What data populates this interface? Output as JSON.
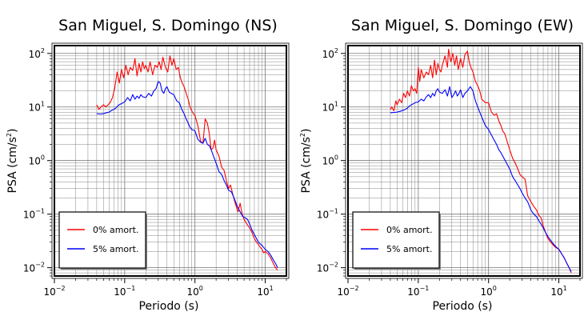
{
  "colors": {
    "undamped": "#ff0000",
    "damped": "#0000ff",
    "grid": "#777777",
    "frame": "#000000"
  },
  "chart_data": [
    {
      "type": "line",
      "title": "San Miguel, S. Domingo (NS)",
      "xlabel": "Periodo (s)",
      "ylabel_base": "PSA (cm/s",
      "ylabel_exp": "2",
      "ylabel_close": ")",
      "xscale": "log",
      "yscale": "log",
      "xlim": [
        0.01,
        20
      ],
      "ylim": [
        0.007,
        140
      ],
      "grid": true,
      "legend_position": "bottom-left",
      "xticks": [
        {
          "value": 0.01,
          "base": "10",
          "exp": "−2"
        },
        {
          "value": 0.1,
          "base": "10",
          "exp": "−1"
        },
        {
          "value": 1,
          "base": "10",
          "exp": "0"
        },
        {
          "value": 10,
          "base": "10",
          "exp": "1"
        }
      ],
      "yticks": [
        {
          "value": 0.01,
          "base": "10",
          "exp": "−2"
        },
        {
          "value": 0.1,
          "base": "10",
          "exp": "−1"
        },
        {
          "value": 1,
          "base": "10",
          "exp": "0"
        },
        {
          "value": 10,
          "base": "10",
          "exp": "1"
        },
        {
          "value": 100,
          "base": "10",
          "exp": "2"
        }
      ],
      "series": [
        {
          "name": "0% amort.",
          "color": "#ff0000",
          "x": [
            0.04,
            0.043,
            0.046,
            0.05,
            0.054,
            0.058,
            0.062,
            0.067,
            0.072,
            0.078,
            0.084,
            0.09,
            0.097,
            0.104,
            0.112,
            0.12,
            0.13,
            0.14,
            0.15,
            0.16,
            0.17,
            0.18,
            0.19,
            0.2,
            0.215,
            0.23,
            0.25,
            0.27,
            0.29,
            0.31,
            0.33,
            0.35,
            0.38,
            0.41,
            0.44,
            0.47,
            0.5,
            0.54,
            0.58,
            0.62,
            0.66,
            0.7,
            0.75,
            0.8,
            0.85,
            0.9,
            0.95,
            1.0,
            1.1,
            1.2,
            1.3,
            1.4,
            1.5,
            1.6,
            1.7,
            1.8,
            1.9,
            2.0,
            2.2,
            2.4,
            2.6,
            2.8,
            3.0,
            3.2,
            3.5,
            3.8,
            4.1,
            4.4,
            4.7,
            5.0,
            5.5,
            6.0,
            6.5,
            7.0,
            7.5,
            8.0,
            8.5,
            9.0,
            9.5,
            10,
            11,
            12,
            13,
            14,
            15
          ],
          "y": [
            11,
            9,
            10,
            11,
            10,
            11,
            12,
            15,
            22,
            45,
            28,
            50,
            35,
            60,
            40,
            55,
            48,
            80,
            38,
            65,
            45,
            70,
            52,
            60,
            45,
            70,
            40,
            60,
            55,
            70,
            50,
            85,
            55,
            45,
            90,
            60,
            80,
            50,
            55,
            35,
            28,
            24,
            18,
            14,
            10,
            8.5,
            7.5,
            7.0,
            4.5,
            2.3,
            2.1,
            6.0,
            5.0,
            3.2,
            1.6,
            1.7,
            2.4,
            1.6,
            1.2,
            0.75,
            0.65,
            0.42,
            0.3,
            0.35,
            0.22,
            0.15,
            0.11,
            0.16,
            0.1,
            0.08,
            0.065,
            0.055,
            0.045,
            0.035,
            0.03,
            0.027,
            0.024,
            0.022,
            0.019,
            0.02,
            0.018,
            0.015,
            0.012,
            0.01,
            0.009
          ]
        },
        {
          "name": "5% amort.",
          "color": "#0000ff",
          "x": [
            0.04,
            0.045,
            0.05,
            0.055,
            0.06,
            0.065,
            0.07,
            0.075,
            0.08,
            0.085,
            0.09,
            0.1,
            0.11,
            0.12,
            0.13,
            0.14,
            0.15,
            0.16,
            0.17,
            0.18,
            0.2,
            0.22,
            0.24,
            0.26,
            0.28,
            0.3,
            0.32,
            0.34,
            0.36,
            0.38,
            0.4,
            0.43,
            0.46,
            0.5,
            0.55,
            0.6,
            0.65,
            0.7,
            0.75,
            0.8,
            0.85,
            0.9,
            1.0,
            1.1,
            1.2,
            1.3,
            1.4,
            1.5,
            1.6,
            1.7,
            1.8,
            2.0,
            2.2,
            2.4,
            2.6,
            2.8,
            3.0,
            3.3,
            3.6,
            4.0,
            4.4,
            4.8,
            5.2,
            5.6,
            6.0,
            6.5,
            7.0,
            7.5,
            8.0,
            9.0,
            10,
            11,
            12,
            13,
            14,
            15
          ],
          "y": [
            7.5,
            7.4,
            7.5,
            7.8,
            8.0,
            8.6,
            9.0,
            9.6,
            10.5,
            11.2,
            11.5,
            12.5,
            15,
            13,
            17,
            14,
            16,
            14.5,
            17,
            15.5,
            15,
            18,
            16,
            20,
            22,
            30,
            28,
            20,
            18,
            22,
            24,
            19,
            18,
            17,
            13,
            12,
            9,
            7.5,
            6,
            5,
            4.2,
            3.8,
            3.6,
            2.5,
            2.2,
            2.1,
            2.6,
            2.0,
            1.9,
            1.6,
            1.3,
            0.9,
            0.62,
            0.55,
            0.42,
            0.35,
            0.28,
            0.26,
            0.2,
            0.14,
            0.11,
            0.09,
            0.085,
            0.08,
            0.065,
            0.05,
            0.042,
            0.035,
            0.03,
            0.026,
            0.022,
            0.02,
            0.017,
            0.014,
            0.012,
            0.01
          ]
        }
      ]
    },
    {
      "type": "line",
      "title": "San Miguel, S. Domingo (EW)",
      "xlabel": "Periodo (s)",
      "ylabel_base": "PSA (cm/s",
      "ylabel_exp": "2",
      "ylabel_close": ")",
      "xscale": "log",
      "yscale": "log",
      "xlim": [
        0.01,
        20
      ],
      "ylim": [
        0.007,
        140
      ],
      "grid": true,
      "legend_position": "bottom-left",
      "xticks": [
        {
          "value": 0.01,
          "base": "10",
          "exp": "−2"
        },
        {
          "value": 0.1,
          "base": "10",
          "exp": "−1"
        },
        {
          "value": 1,
          "base": "10",
          "exp": "0"
        },
        {
          "value": 10,
          "base": "10",
          "exp": "1"
        }
      ],
      "yticks": [
        {
          "value": 0.01,
          "base": "10",
          "exp": "−2"
        },
        {
          "value": 0.1,
          "base": "10",
          "exp": "−1"
        },
        {
          "value": 1,
          "base": "10",
          "exp": "0"
        },
        {
          "value": 10,
          "base": "10",
          "exp": "1"
        },
        {
          "value": 100,
          "base": "10",
          "exp": "2"
        }
      ],
      "series": [
        {
          "name": "0% amort.",
          "color": "#ff0000",
          "x": [
            0.04,
            0.042,
            0.045,
            0.048,
            0.05,
            0.054,
            0.058,
            0.062,
            0.066,
            0.07,
            0.075,
            0.08,
            0.085,
            0.09,
            0.095,
            0.1,
            0.105,
            0.11,
            0.12,
            0.13,
            0.14,
            0.15,
            0.16,
            0.17,
            0.18,
            0.19,
            0.2,
            0.21,
            0.22,
            0.24,
            0.26,
            0.27,
            0.29,
            0.31,
            0.33,
            0.35,
            0.37,
            0.4,
            0.43,
            0.46,
            0.5,
            0.53,
            0.56,
            0.6,
            0.65,
            0.7,
            0.75,
            0.8,
            0.9,
            1.0,
            1.1,
            1.2,
            1.3,
            1.4,
            1.5,
            1.6,
            1.7,
            1.8,
            2.0,
            2.2,
            2.4,
            2.6,
            2.8,
            3.0,
            3.3,
            3.6,
            4.0,
            4.4,
            4.8,
            5.2,
            5.6,
            6.0,
            6.5,
            7.0,
            8.0,
            9.0,
            10,
            11,
            12,
            13,
            14,
            15
          ],
          "y": [
            9,
            10,
            8.5,
            13,
            11,
            14,
            12,
            18,
            15,
            20,
            16,
            25,
            20,
            22,
            18,
            55,
            30,
            50,
            35,
            45,
            40,
            60,
            35,
            75,
            40,
            65,
            50,
            45,
            60,
            90,
            55,
            120,
            70,
            100,
            60,
            90,
            50,
            80,
            55,
            95,
            110,
            70,
            55,
            45,
            30,
            25,
            20,
            14,
            12,
            12,
            8,
            7,
            7.5,
            5.5,
            4.5,
            3.5,
            3.2,
            2.5,
            1.6,
            1.1,
            0.9,
            0.7,
            0.55,
            0.5,
            0.45,
            0.22,
            0.17,
            0.14,
            0.12,
            0.095,
            0.085,
            0.06,
            0.045,
            0.035,
            0.028,
            0.024,
            0.022,
            0.018,
            0.015,
            0.012,
            0.01,
            0.008
          ]
        },
        {
          "name": "5% amort.",
          "color": "#0000ff",
          "x": [
            0.04,
            0.045,
            0.05,
            0.055,
            0.06,
            0.065,
            0.07,
            0.075,
            0.08,
            0.085,
            0.09,
            0.1,
            0.11,
            0.12,
            0.13,
            0.14,
            0.15,
            0.16,
            0.17,
            0.18,
            0.19,
            0.2,
            0.22,
            0.24,
            0.26,
            0.28,
            0.3,
            0.32,
            0.34,
            0.36,
            0.38,
            0.4,
            0.43,
            0.46,
            0.5,
            0.55,
            0.6,
            0.65,
            0.7,
            0.75,
            0.8,
            0.9,
            1.0,
            1.1,
            1.2,
            1.3,
            1.4,
            1.5,
            1.6,
            1.8,
            2.0,
            2.2,
            2.4,
            2.6,
            2.8,
            3.0,
            3.3,
            3.6,
            4.0,
            4.4,
            4.8,
            5.2,
            5.6,
            6.0,
            6.5,
            7.0,
            8.0,
            9.0,
            10,
            11,
            12,
            13,
            14,
            15
          ],
          "y": [
            7.8,
            7.9,
            8.0,
            8.3,
            8.6,
            9.0,
            9.5,
            10.5,
            11.0,
            11.5,
            12.0,
            12.5,
            14,
            13,
            15.5,
            17,
            15,
            18,
            16,
            20,
            22,
            19,
            18,
            21,
            16,
            24,
            15,
            17,
            20,
            16,
            18,
            21,
            15,
            18,
            20,
            24,
            20,
            13,
            10,
            8,
            6.5,
            4.5,
            3.8,
            3.0,
            2.4,
            2.0,
            1.6,
            1.4,
            1.2,
            0.9,
            0.7,
            0.5,
            0.42,
            0.35,
            0.3,
            0.25,
            0.2,
            0.17,
            0.12,
            0.1,
            0.09,
            0.075,
            0.065,
            0.055,
            0.045,
            0.038,
            0.03,
            0.025,
            0.022,
            0.018,
            0.015,
            0.012,
            0.01,
            0.0085
          ]
        }
      ]
    }
  ]
}
